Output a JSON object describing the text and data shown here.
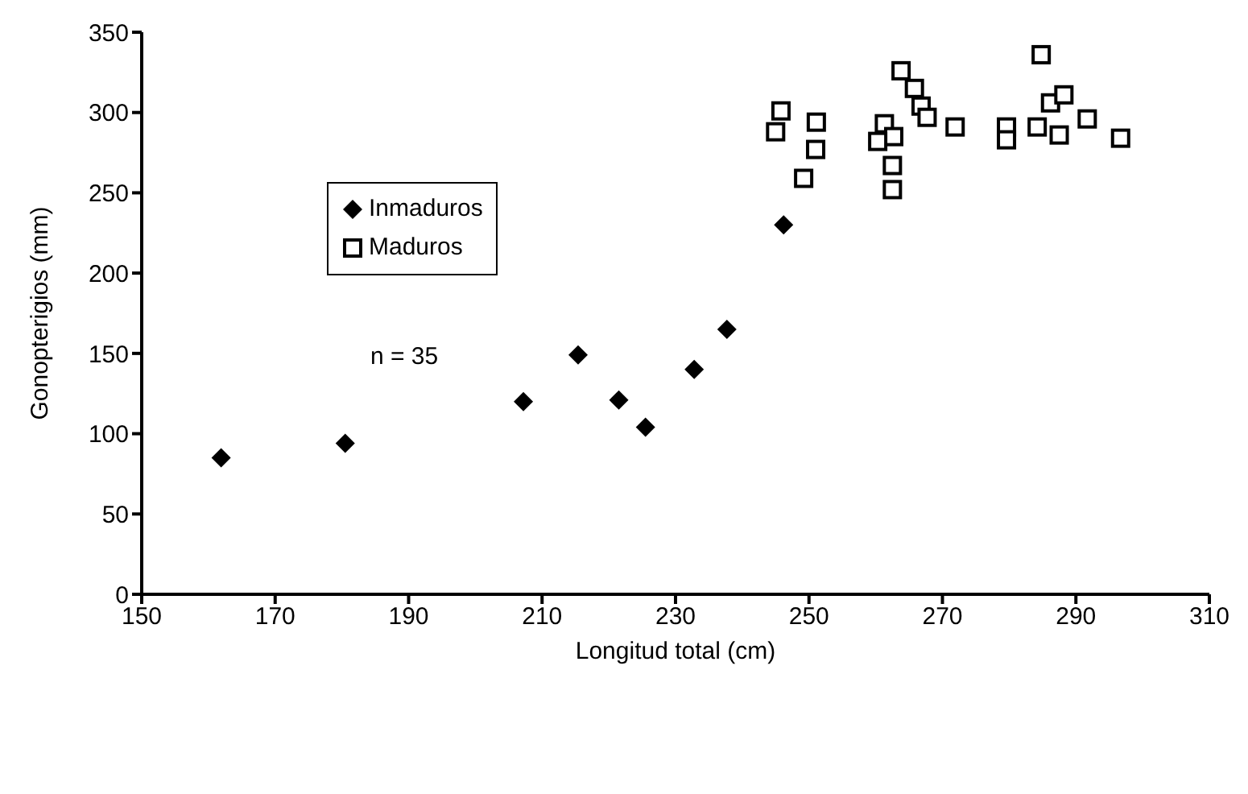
{
  "chart_data": {
    "type": "scatter",
    "xlabel": "Longitud total (cm)",
    "ylabel": "Gonopterigios (mm)",
    "xlim": [
      150,
      310
    ],
    "xticks": [
      150,
      170,
      190,
      210,
      230,
      250,
      270,
      290,
      310
    ],
    "ylim": [
      0,
      350
    ],
    "yticks": [
      0,
      50,
      100,
      150,
      200,
      250,
      300,
      350
    ],
    "grid": false,
    "legend": "top left",
    "annotations": [
      "n = 35"
    ],
    "series": [
      {
        "name": "Inmaduros",
        "color": "#000000",
        "marker": "diamond",
        "x": [
          161.9,
          180.5,
          207.2,
          215.4,
          221.5,
          225.5,
          232.8,
          237.7,
          246.2
        ],
        "values": [
          85,
          94,
          120,
          149,
          121,
          104,
          140,
          165,
          230
        ]
      },
      {
        "name": "Maduros",
        "color": "#000000",
        "marker": "square",
        "x": [
          245.8,
          245,
          251.1,
          251,
          249.2,
          261.3,
          262.7,
          260.3,
          262.5,
          262.5,
          263.8,
          265.8,
          266.8,
          267.7,
          271.9,
          279.6,
          279.6,
          284.2,
          287.5,
          286.2,
          288.2,
          291.7,
          296.7,
          284.8
        ],
        "values": [
          301,
          288,
          294,
          277,
          259,
          293,
          285,
          282,
          267,
          252,
          326,
          315,
          304,
          297,
          291,
          291,
          283,
          291,
          286,
          306,
          311,
          296,
          284,
          336
        ]
      }
    ]
  }
}
